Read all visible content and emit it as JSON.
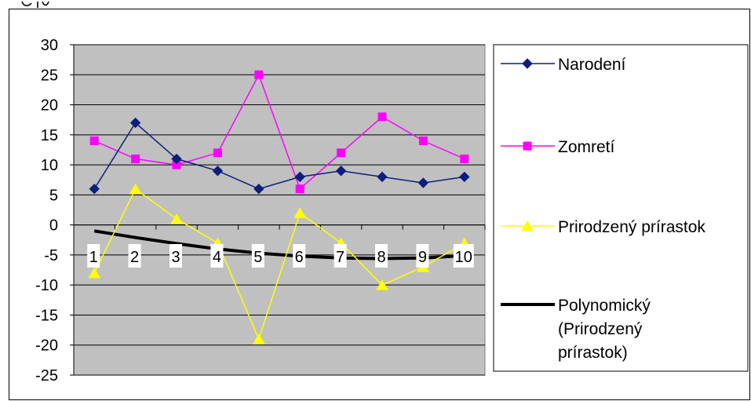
{
  "chart_data": {
    "type": "line",
    "categories": [
      "1",
      "2",
      "3",
      "4",
      "5",
      "6",
      "7",
      "8",
      "9",
      "10"
    ],
    "series": [
      {
        "name": "Narodení",
        "values": [
          6,
          17,
          11,
          9,
          6,
          8,
          9,
          8,
          7,
          8
        ],
        "color": "#0b1f7a",
        "marker": "diamond"
      },
      {
        "name": "Zomretí",
        "values": [
          14,
          11,
          10,
          12,
          25,
          6,
          12,
          18,
          14,
          11
        ],
        "color": "#ff00ff",
        "marker": "square"
      },
      {
        "name": "Prirodzený prírastok",
        "values": [
          -8,
          6,
          1,
          -3,
          -19,
          2,
          -3,
          -10,
          -7,
          -3
        ],
        "color": "#ffff00",
        "marker": "triangle"
      }
    ],
    "trendline": {
      "name": "Polynomický (Prirodzený prírastok)",
      "name_lines": [
        "Polynomický",
        "(Prirodzený",
        "prírastok)"
      ],
      "type": "polynomial",
      "color": "#000000",
      "values": [
        -1,
        -2.1,
        -3.1,
        -4.0,
        -4.7,
        -5.2,
        -5.5,
        -5.6,
        -5.5,
        -5.1
      ]
    },
    "ylim": [
      -25,
      30
    ],
    "yticks": [
      "30",
      "25",
      "20",
      "15",
      "10",
      "5",
      "0",
      "-5",
      "-10",
      "-15",
      "-20",
      "-25"
    ],
    "grid": true,
    "plot_background": "#c0c0c0",
    "legend_position": "right",
    "title": "",
    "xlabel": "",
    "ylabel": ""
  }
}
